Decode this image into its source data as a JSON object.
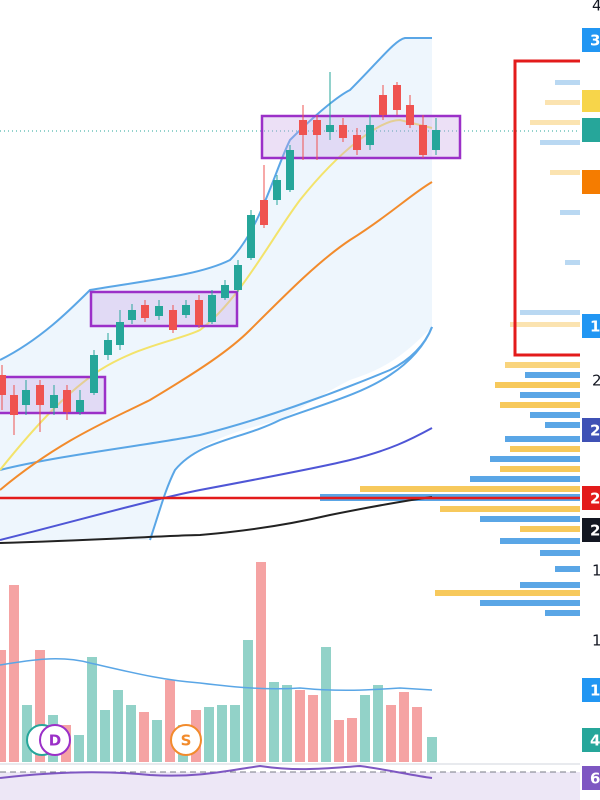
{
  "axis_labels": [
    "4",
    "2",
    "1",
    "1"
  ],
  "price_tags": [
    "3",
    "1",
    "2",
    "2",
    "2",
    "1",
    "4",
    "6"
  ],
  "markers": [
    "D",
    "S"
  ]
}
